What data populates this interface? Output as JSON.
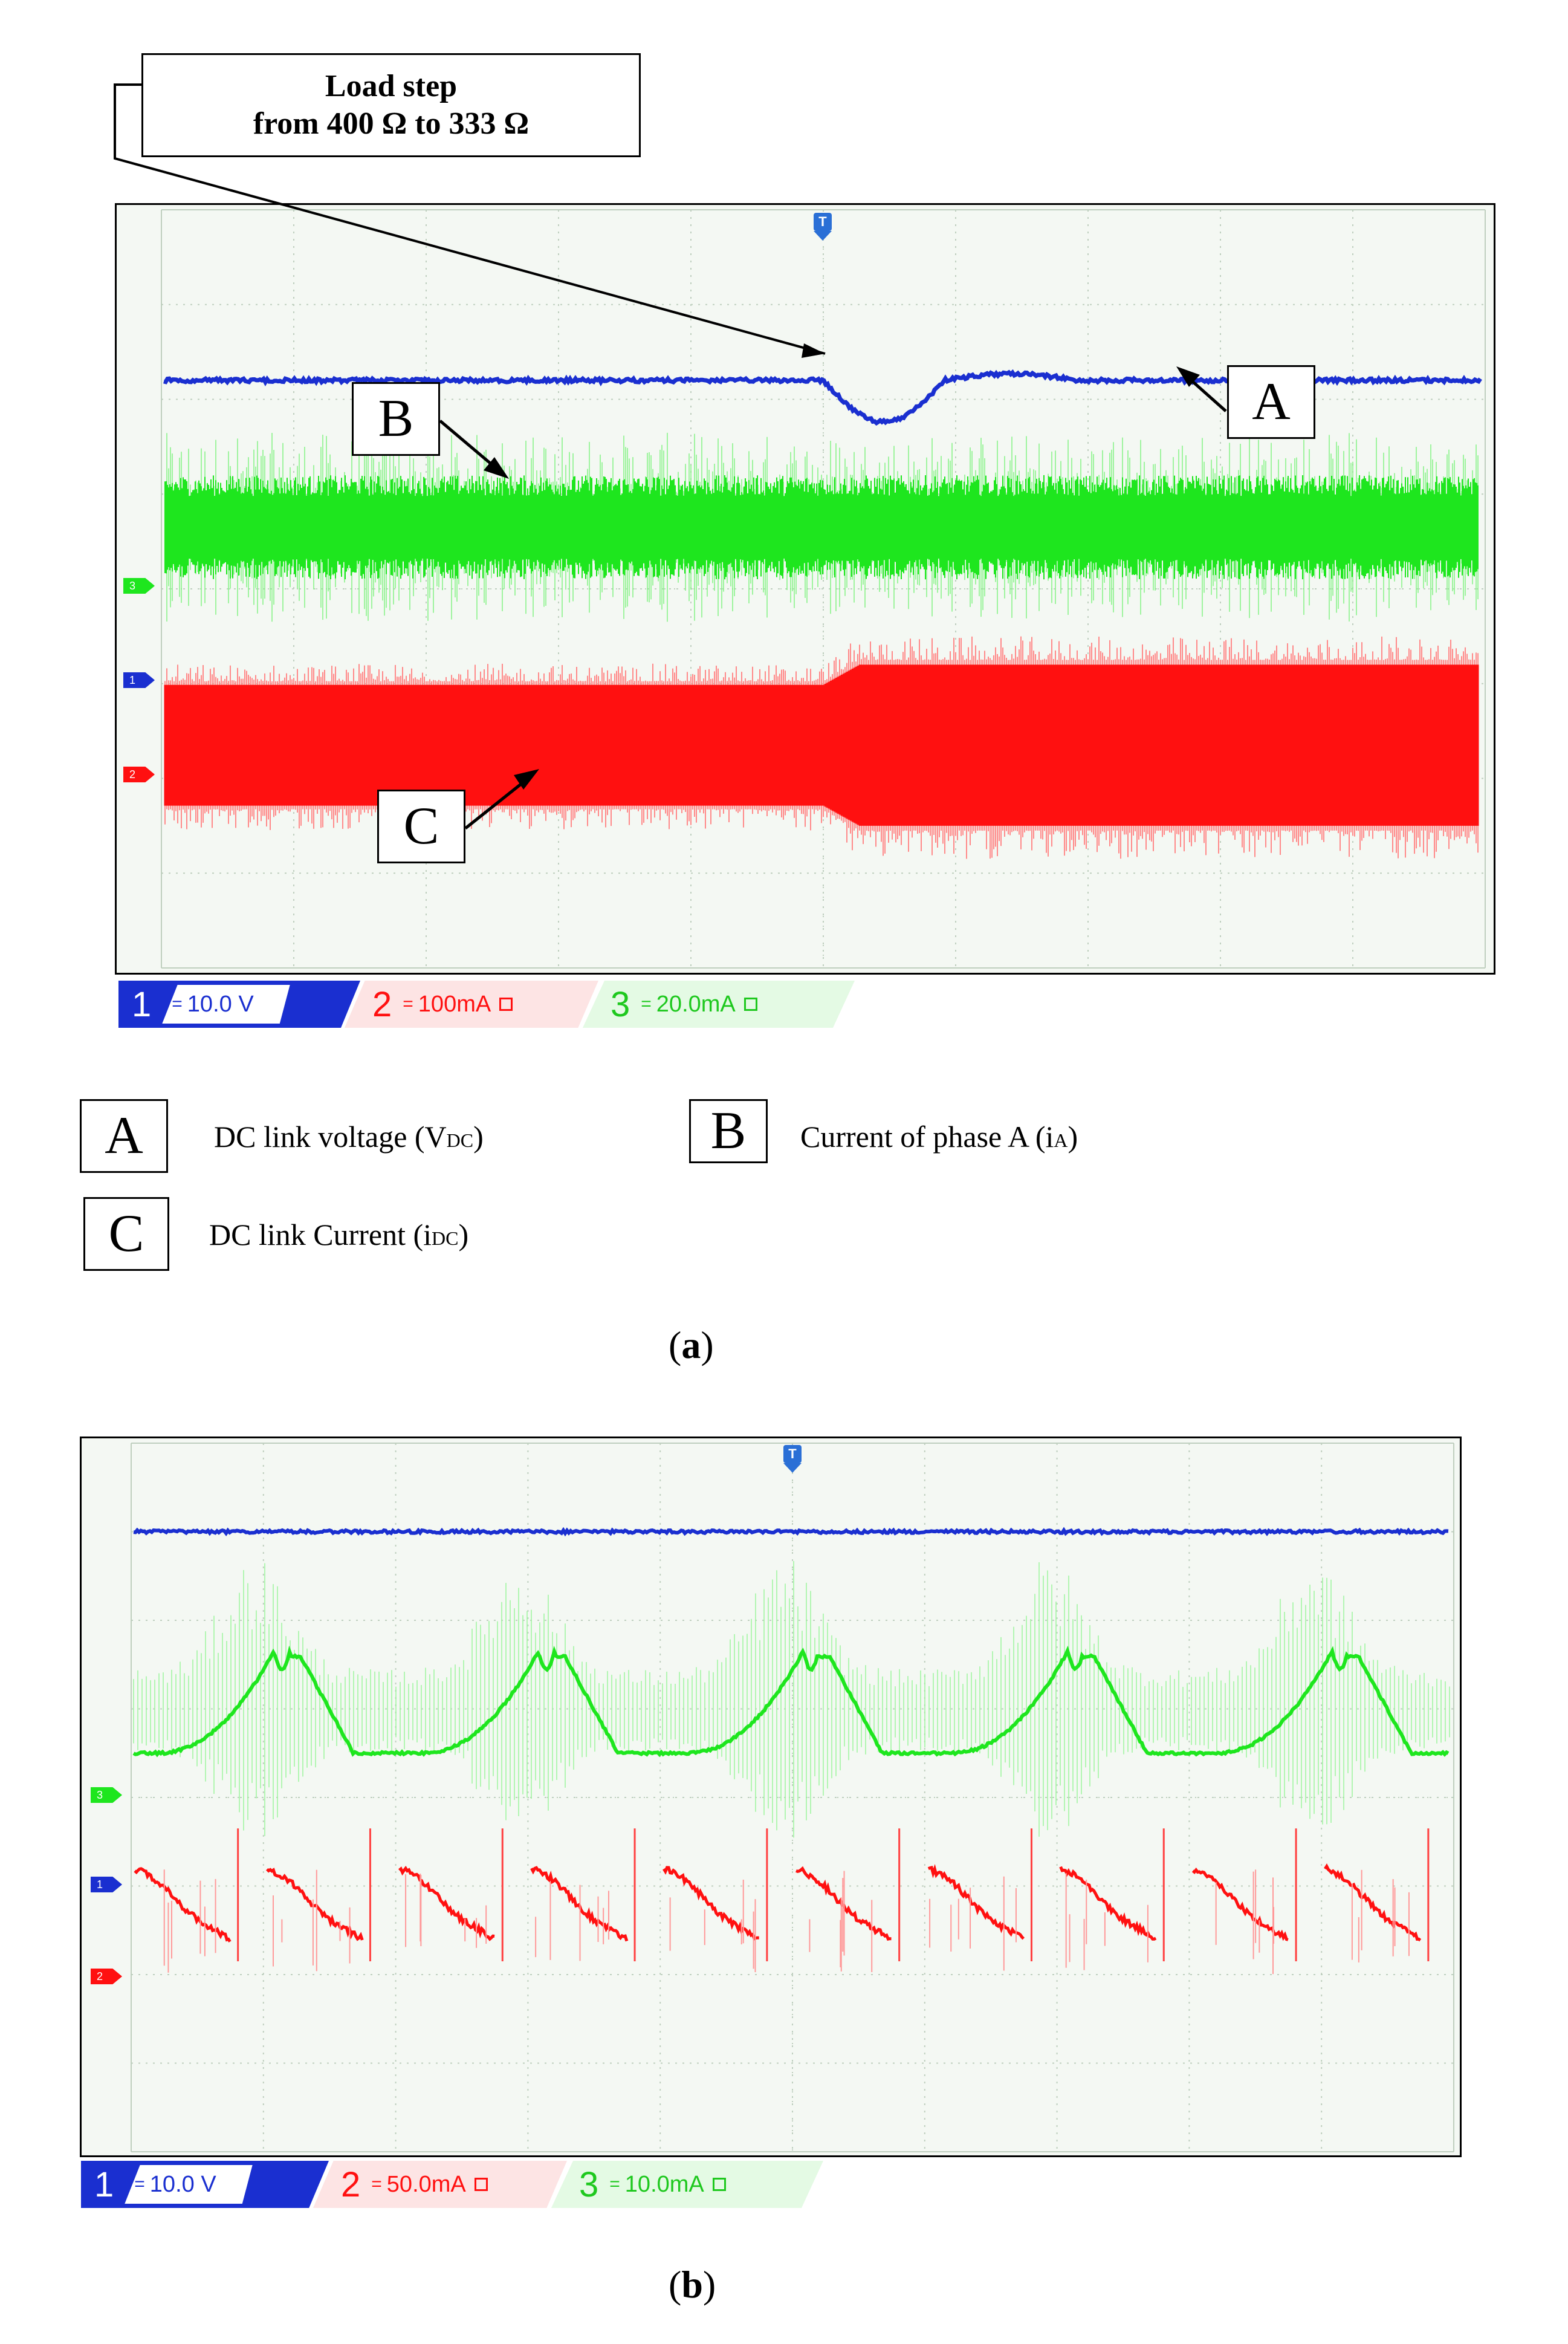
{
  "callout": {
    "line1": "Load step",
    "line2": "from 400 Ω to 333 Ω"
  },
  "box_letters": {
    "a": "A",
    "b": "B",
    "c": "C"
  },
  "legend": {
    "a": {
      "letter": "A",
      "text": "DC link voltage (V",
      "sub": "DC",
      "close": ")"
    },
    "b": {
      "letter": "B",
      "text": "Current of phase A  (i",
      "sub": "A",
      "close": ")"
    },
    "c": {
      "letter": "C",
      "text": "DC link Current (i",
      "sub": "DC",
      "close": ")"
    }
  },
  "captions": {
    "a": "a",
    "b": "b"
  },
  "channel_markers": {
    "ch1": "1",
    "ch2": "2",
    "ch3": "3",
    "trigger": "T"
  },
  "colors": {
    "ch1": "#1a2fd0",
    "ch2": "#ff1010",
    "ch3": "#1ee61e",
    "grid": "#bfcfbf",
    "screen_bg": "#f4f8f3"
  },
  "panel_a": {
    "statusbar": [
      {
        "ch": "1",
        "coupling": "=",
        "scale": "10.0 V"
      },
      {
        "ch": "2",
        "coupling": "=",
        "scale": "100mA"
      },
      {
        "ch": "3",
        "coupling": "=",
        "scale": "20.0mA"
      }
    ]
  },
  "panel_b": {
    "statusbar": [
      {
        "ch": "1",
        "coupling": "=",
        "scale": "10.0 V"
      },
      {
        "ch": "2",
        "coupling": "=",
        "scale": "50.0mA"
      },
      {
        "ch": "3",
        "coupling": "=",
        "scale": "10.0mA"
      }
    ]
  },
  "chart_data": [
    {
      "type": "line",
      "title": "",
      "grid": true,
      "divisions": {
        "x": 10,
        "y": 8
      },
      "load_step_at_div": 5.0,
      "series": [
        {
          "name": "DC link voltage (VDC)",
          "channel": "1",
          "scale_per_div": "10.0 V",
          "level_div": 6.2,
          "dip_div": 0.2
        },
        {
          "name": "Current of phase A (iA)",
          "channel": "3",
          "scale_per_div": "20.0mA",
          "center_div": 4.65,
          "envelope_div": 1.0
        },
        {
          "name": "DC link Current (iDC)",
          "channel": "2",
          "scale_per_div": "100mA",
          "center_div": 2.35,
          "envelope_before_div": 0.75,
          "envelope_after_div": 1.0
        }
      ]
    },
    {
      "type": "line",
      "title": "",
      "grid": true,
      "divisions": {
        "x": 10,
        "y": 8
      },
      "series": [
        {
          "name": "",
          "channel": "1",
          "scale_per_div": "10.0 V",
          "level_div": 7.0
        },
        {
          "name": "",
          "channel": "3",
          "scale_per_div": "10.0mA",
          "baseline_div": 4.5,
          "peak_div": 5.65,
          "periods": 5
        },
        {
          "name": "",
          "channel": "2",
          "scale_per_div": "50.0mA",
          "periods": 10,
          "high_div": 3.2,
          "low_div": 2.4
        }
      ]
    }
  ]
}
